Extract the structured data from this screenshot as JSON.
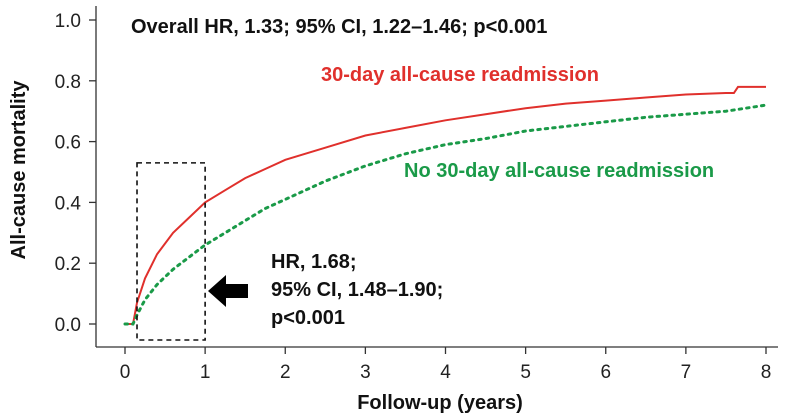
{
  "chart_data": {
    "type": "line",
    "title": "",
    "xlabel": "Follow-up (years)",
    "ylabel": "All-cause mortality",
    "xlim": [
      0,
      8
    ],
    "ylim": [
      0,
      1.0
    ],
    "x_ticks": [
      "0",
      "1",
      "2",
      "3",
      "4",
      "5",
      "6",
      "7",
      "8"
    ],
    "y_ticks": [
      "0.0",
      "0.2",
      "0.4",
      "0.6",
      "0.8",
      "1.0"
    ],
    "grid": false,
    "series": [
      {
        "name": "30-day all-cause readmission",
        "color": "#e0302c",
        "style": "solid",
        "x": [
          0.0,
          0.1,
          0.15,
          0.25,
          0.4,
          0.6,
          0.8,
          1.0,
          1.25,
          1.5,
          1.75,
          2.0,
          2.5,
          3.0,
          3.5,
          4.0,
          4.5,
          5.0,
          5.5,
          6.0,
          6.5,
          7.0,
          7.5,
          7.6,
          7.65,
          8.0
        ],
        "y": [
          0.0,
          0.0,
          0.07,
          0.15,
          0.23,
          0.3,
          0.35,
          0.4,
          0.44,
          0.48,
          0.51,
          0.54,
          0.58,
          0.62,
          0.645,
          0.67,
          0.69,
          0.71,
          0.725,
          0.735,
          0.745,
          0.755,
          0.76,
          0.76,
          0.78,
          0.78
        ]
      },
      {
        "name": "No 30-day all-cause readmission",
        "color": "#1a9a48",
        "style": "dotted",
        "x": [
          0.0,
          0.1,
          0.15,
          0.25,
          0.4,
          0.6,
          0.8,
          1.0,
          1.25,
          1.5,
          1.75,
          2.0,
          2.5,
          3.0,
          3.5,
          4.0,
          4.5,
          5.0,
          5.5,
          6.0,
          6.5,
          7.0,
          7.5,
          8.0
        ],
        "y": [
          0.0,
          0.0,
          0.03,
          0.08,
          0.13,
          0.18,
          0.22,
          0.26,
          0.3,
          0.34,
          0.38,
          0.41,
          0.47,
          0.52,
          0.56,
          0.59,
          0.61,
          0.635,
          0.65,
          0.665,
          0.68,
          0.69,
          0.7,
          0.72
        ]
      }
    ],
    "annotations": {
      "overall": "Overall HR, 1.33; 95% CI, 1.22–1.46; p<0.001",
      "readmit_label": "30-day all-cause readmission",
      "no_readmit_label": "No 30-day all-cause readmission",
      "early_hr": [
        "HR, 1.68;",
        "95% CI, 1.48–1.90;",
        "p<0.001"
      ]
    },
    "highlight_box": {
      "x_range": [
        0.1,
        1.0
      ],
      "y_range": [
        0,
        0.53
      ]
    }
  }
}
